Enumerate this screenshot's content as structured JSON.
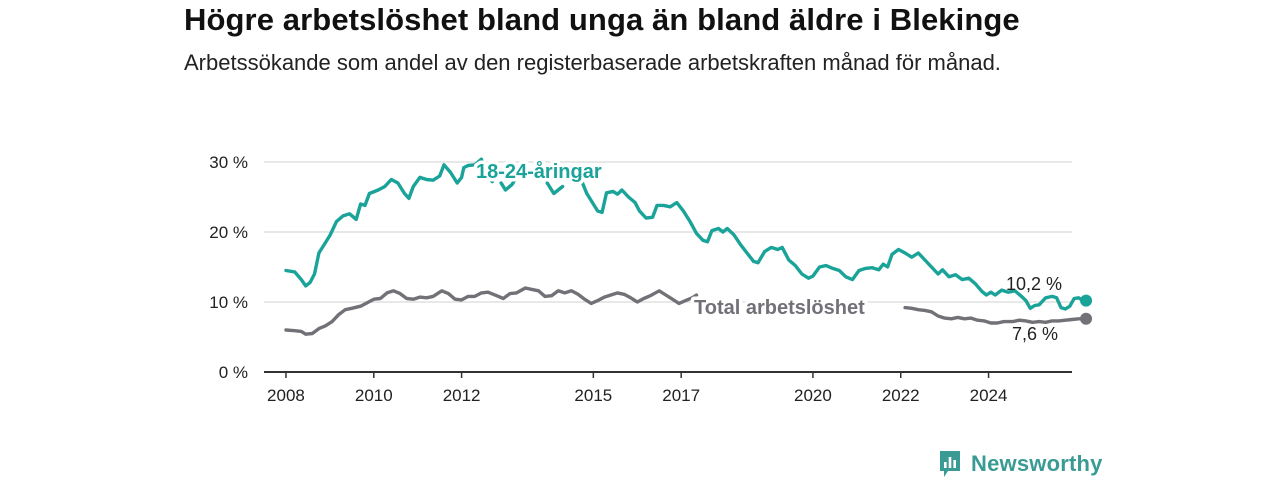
{
  "header": {
    "title": "Högre arbetslöshet bland unga än bland äldre i Blekinge",
    "subtitle": "Arbetssökande som andel av den registerbaserade arbetskraften månad för månad."
  },
  "brand": {
    "name": "Newsworthy",
    "icon": "newsworthy-logo-icon",
    "color": "#3a9b94"
  },
  "chart_data": {
    "type": "line",
    "x_range": [
      2007.5,
      2025.9
    ],
    "ylim": [
      0,
      30
    ],
    "y_ticks": [
      0,
      10,
      20,
      30
    ],
    "y_tick_labels": [
      "0 %",
      "10 %",
      "20 %",
      "30 %"
    ],
    "x_ticks": [
      2008,
      2010,
      2012,
      2015,
      2017,
      2020,
      2022,
      2024
    ],
    "x_tick_labels": [
      "2008",
      "2010",
      "2012",
      "2015",
      "2017",
      "2020",
      "2022",
      "2024"
    ],
    "grid": true,
    "series": [
      {
        "name": "18-24-åringar",
        "color": "#1aa399",
        "end_label": "10,2 %",
        "points": [
          [
            2008.0,
            14.5
          ],
          [
            2008.2,
            14.3
          ],
          [
            2008.35,
            13.2
          ],
          [
            2008.45,
            12.3
          ],
          [
            2008.55,
            12.8
          ],
          [
            2008.65,
            14.0
          ],
          [
            2008.75,
            17.0
          ],
          [
            2008.9,
            18.5
          ],
          [
            2009.0,
            19.5
          ],
          [
            2009.15,
            21.5
          ],
          [
            2009.3,
            22.3
          ],
          [
            2009.45,
            22.6
          ],
          [
            2009.6,
            21.8
          ],
          [
            2009.7,
            24.0
          ],
          [
            2009.8,
            23.8
          ],
          [
            2009.9,
            25.5
          ],
          [
            2010.1,
            26.0
          ],
          [
            2010.25,
            26.5
          ],
          [
            2010.4,
            27.5
          ],
          [
            2010.55,
            27.0
          ],
          [
            2010.7,
            25.5
          ],
          [
            2010.8,
            24.8
          ],
          [
            2010.9,
            26.5
          ],
          [
            2011.05,
            27.8
          ],
          [
            2011.2,
            27.5
          ],
          [
            2011.35,
            27.4
          ],
          [
            2011.5,
            28.0
          ],
          [
            2011.6,
            29.6
          ],
          [
            2011.75,
            28.5
          ],
          [
            2011.9,
            27.0
          ],
          [
            2012.0,
            27.8
          ],
          [
            2012.05,
            29.2
          ],
          [
            2012.15,
            29.5
          ],
          [
            2012.3,
            29.6
          ],
          [
            2012.45,
            30.4
          ],
          [
            2012.55,
            28.5
          ],
          [
            2012.7,
            27.2
          ]
        ],
        "points_2": [
          [
            2012.9,
            27.0
          ],
          [
            2013.0,
            26.0
          ],
          [
            2013.15,
            26.8
          ],
          [
            2013.2,
            27.3
          ]
        ],
        "points_3": [
          [
            2013.95,
            27.0
          ],
          [
            2014.1,
            25.5
          ],
          [
            2014.2,
            26.0
          ],
          [
            2014.3,
            26.5
          ]
        ],
        "points_4": [
          [
            2014.7,
            27.8
          ],
          [
            2014.85,
            25.5
          ],
          [
            2015.0,
            24.0
          ],
          [
            2015.1,
            23.0
          ],
          [
            2015.2,
            22.8
          ],
          [
            2015.3,
            25.6
          ],
          [
            2015.45,
            25.8
          ],
          [
            2015.55,
            25.4
          ],
          [
            2015.65,
            26.0
          ],
          [
            2015.8,
            25.0
          ],
          [
            2015.95,
            24.2
          ],
          [
            2016.05,
            23.0
          ],
          [
            2016.2,
            22.0
          ],
          [
            2016.35,
            22.1
          ],
          [
            2016.45,
            23.8
          ],
          [
            2016.6,
            23.8
          ],
          [
            2016.75,
            23.6
          ],
          [
            2016.9,
            24.2
          ],
          [
            2017.05,
            23.0
          ],
          [
            2017.2,
            21.5
          ],
          [
            2017.35,
            19.8
          ],
          [
            2017.5,
            18.8
          ],
          [
            2017.6,
            18.6
          ],
          [
            2017.7,
            20.2
          ],
          [
            2017.85,
            20.5
          ],
          [
            2017.95,
            20.0
          ],
          [
            2018.05,
            20.5
          ],
          [
            2018.2,
            19.6
          ],
          [
            2018.35,
            18.2
          ],
          [
            2018.5,
            17.0
          ],
          [
            2018.65,
            15.8
          ],
          [
            2018.75,
            15.6
          ],
          [
            2018.9,
            17.2
          ],
          [
            2019.05,
            17.8
          ],
          [
            2019.2,
            17.5
          ],
          [
            2019.3,
            17.8
          ],
          [
            2019.45,
            16.0
          ],
          [
            2019.6,
            15.2
          ],
          [
            2019.75,
            14.0
          ],
          [
            2019.9,
            13.4
          ],
          [
            2020.0,
            13.7
          ],
          [
            2020.15,
            15.0
          ],
          [
            2020.3,
            15.2
          ],
          [
            2020.45,
            14.8
          ],
          [
            2020.6,
            14.5
          ],
          [
            2020.75,
            13.6
          ],
          [
            2020.9,
            13.2
          ],
          [
            2021.05,
            14.5
          ],
          [
            2021.2,
            14.8
          ],
          [
            2021.35,
            14.9
          ],
          [
            2021.5,
            14.6
          ],
          [
            2021.6,
            15.4
          ],
          [
            2021.7,
            15.0
          ],
          [
            2021.8,
            16.8
          ],
          [
            2021.95,
            17.5
          ],
          [
            2022.1,
            17.0
          ],
          [
            2022.25,
            16.4
          ],
          [
            2022.4,
            17.0
          ],
          [
            2022.55,
            16.0
          ],
          [
            2022.7,
            15.0
          ],
          [
            2022.85,
            14.0
          ],
          [
            2022.95,
            14.6
          ],
          [
            2023.1,
            13.6
          ],
          [
            2023.25,
            13.9
          ],
          [
            2023.4,
            13.2
          ],
          [
            2023.55,
            13.4
          ],
          [
            2023.7,
            12.6
          ],
          [
            2023.85,
            11.5
          ],
          [
            2023.95,
            11.0
          ],
          [
            2024.05,
            11.4
          ],
          [
            2024.15,
            11.0
          ],
          [
            2024.3,
            11.7
          ],
          [
            2024.45,
            11.4
          ],
          [
            2024.6,
            11.6
          ],
          [
            2024.75,
            10.8
          ],
          [
            2024.85,
            10.2
          ],
          [
            2024.95,
            9.1
          ],
          [
            2025.05,
            9.5
          ],
          [
            2025.15,
            9.6
          ],
          [
            2025.3,
            10.6
          ],
          [
            2025.45,
            10.8
          ],
          [
            2025.55,
            10.6
          ],
          [
            2025.65,
            9.2
          ],
          [
            2025.75,
            9.0
          ],
          [
            2025.85,
            9.4
          ],
          [
            2025.95,
            10.5
          ],
          [
            2026.05,
            10.6
          ],
          [
            2026.15,
            10.2
          ],
          [
            2026.22,
            10.2
          ]
        ]
      },
      {
        "name": "Total arbetslöshet",
        "color": "#737178",
        "end_label": "7,6 %",
        "points": [
          [
            2008.0,
            6.0
          ],
          [
            2008.2,
            5.9
          ],
          [
            2008.35,
            5.8
          ],
          [
            2008.45,
            5.4
          ],
          [
            2008.6,
            5.5
          ],
          [
            2008.75,
            6.2
          ],
          [
            2008.9,
            6.6
          ],
          [
            2009.05,
            7.2
          ],
          [
            2009.2,
            8.2
          ],
          [
            2009.35,
            8.9
          ],
          [
            2009.5,
            9.1
          ],
          [
            2009.7,
            9.4
          ],
          [
            2009.85,
            9.9
          ],
          [
            2010.0,
            10.4
          ],
          [
            2010.15,
            10.5
          ],
          [
            2010.3,
            11.3
          ],
          [
            2010.45,
            11.6
          ],
          [
            2010.6,
            11.2
          ],
          [
            2010.75,
            10.5
          ],
          [
            2010.9,
            10.4
          ],
          [
            2011.05,
            10.7
          ],
          [
            2011.2,
            10.6
          ],
          [
            2011.35,
            10.8
          ],
          [
            2011.55,
            11.6
          ],
          [
            2011.7,
            11.2
          ],
          [
            2011.85,
            10.4
          ],
          [
            2012.0,
            10.3
          ],
          [
            2012.15,
            10.8
          ],
          [
            2012.3,
            10.8
          ],
          [
            2012.45,
            11.3
          ],
          [
            2012.6,
            11.4
          ],
          [
            2012.8,
            10.9
          ],
          [
            2012.95,
            10.5
          ],
          [
            2013.1,
            11.2
          ],
          [
            2013.25,
            11.3
          ],
          [
            2013.45,
            12.0
          ],
          [
            2013.6,
            11.8
          ],
          [
            2013.75,
            11.6
          ],
          [
            2013.9,
            10.8
          ],
          [
            2014.05,
            10.9
          ],
          [
            2014.2,
            11.6
          ],
          [
            2014.35,
            11.3
          ],
          [
            2014.5,
            11.6
          ],
          [
            2014.65,
            11.1
          ],
          [
            2014.8,
            10.4
          ],
          [
            2014.95,
            9.8
          ],
          [
            2015.1,
            10.2
          ],
          [
            2015.25,
            10.7
          ],
          [
            2015.4,
            11.0
          ],
          [
            2015.55,
            11.3
          ],
          [
            2015.7,
            11.1
          ],
          [
            2015.85,
            10.6
          ],
          [
            2016.0,
            10.0
          ],
          [
            2016.15,
            10.5
          ],
          [
            2016.3,
            10.9
          ],
          [
            2016.5,
            11.6
          ],
          [
            2016.65,
            11.0
          ],
          [
            2016.8,
            10.4
          ],
          [
            2016.95,
            9.8
          ],
          [
            2017.1,
            10.2
          ],
          [
            2017.25,
            10.6
          ],
          [
            2017.35,
            11.0
          ]
        ],
        "points_2": [
          [
            2022.1,
            9.2
          ],
          [
            2022.25,
            9.1
          ],
          [
            2022.4,
            8.9
          ],
          [
            2022.55,
            8.8
          ],
          [
            2022.7,
            8.6
          ],
          [
            2022.85,
            8.0
          ],
          [
            2023.0,
            7.7
          ],
          [
            2023.15,
            7.6
          ],
          [
            2023.3,
            7.8
          ],
          [
            2023.45,
            7.6
          ],
          [
            2023.6,
            7.7
          ],
          [
            2023.75,
            7.4
          ],
          [
            2023.9,
            7.3
          ],
          [
            2024.05,
            7.0
          ],
          [
            2024.2,
            7.0
          ],
          [
            2024.35,
            7.2
          ],
          [
            2024.55,
            7.2
          ],
          [
            2024.7,
            7.4
          ],
          [
            2024.85,
            7.3
          ],
          [
            2025.0,
            7.1
          ],
          [
            2025.15,
            7.2
          ],
          [
            2025.3,
            7.1
          ],
          [
            2025.45,
            7.3
          ],
          [
            2025.6,
            7.3
          ],
          [
            2025.75,
            7.4
          ],
          [
            2025.9,
            7.5
          ],
          [
            2026.05,
            7.6
          ],
          [
            2026.22,
            7.6
          ]
        ]
      }
    ]
  }
}
